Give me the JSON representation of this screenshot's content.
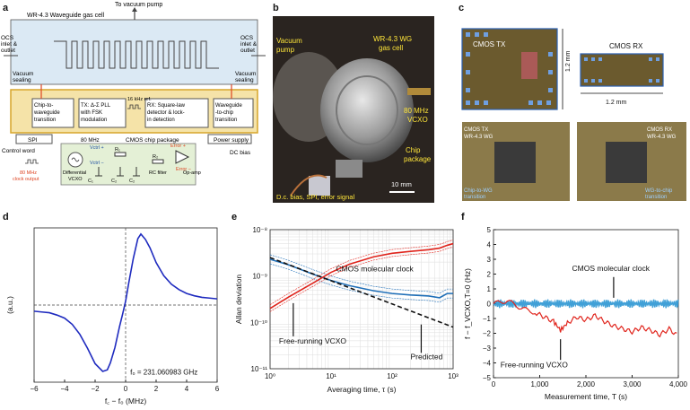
{
  "panels": {
    "a": {
      "label": "a",
      "title": "WR-4.3 Waveguide gas cell",
      "vacuum_pump": "To vacuum pump",
      "ocs_left": [
        "OCS",
        "inlet &",
        "outlet"
      ],
      "ocs_right": [
        "OCS",
        "inlet &",
        "outlet"
      ],
      "vac_seal_left": [
        "Vacuum",
        "sealing"
      ],
      "vac_seal_right": [
        "Vacuum",
        "sealing"
      ],
      "blocks": {
        "c2w": [
          "Chip-to-",
          "waveguide",
          "transition"
        ],
        "tx": [
          "TX: Δ-Σ PLL",
          "with FSK",
          "modulation"
        ],
        "ref": "16 kHz ref.",
        "rx": [
          "RX: Square-law",
          "detector & lock-",
          "in detection"
        ],
        "w2c": [
          "Waveguide",
          "-to-chip",
          "transition"
        ],
        "spi": "SPI",
        "mhz80": "80 MHz",
        "package": "CMOS chip package",
        "power": "Power supply"
      },
      "control_word": "Control word",
      "dc_bias": "DC bias",
      "vctrl1": "Vctrl +",
      "vctrl2": "Vctrl −",
      "error_p": "Error +",
      "error_m": "Error −",
      "r1": "R₁",
      "r2": "R₂",
      "c1": "C₁",
      "c2": "C₂",
      "c3": "C₂",
      "rc_filter": "RC filter",
      "op_amp": "Op-amp",
      "vcxo": [
        "Differential",
        "VCXO"
      ],
      "clock_out": [
        "80 MHz",
        "clock output"
      ]
    },
    "b": {
      "label": "b",
      "vacuum_pump": [
        "Vacuum",
        "pump"
      ],
      "gas_cell": [
        "WR-4.3 WG",
        "gas cell"
      ],
      "vcxo": [
        "80 MHz",
        "VCXO"
      ],
      "chip_pkg": [
        "Chip",
        "package"
      ],
      "dc_bias": "D.c. bias, SPI, error signal",
      "scale": "10 mm"
    },
    "c": {
      "label": "c",
      "cmos_tx": "CMOS TX",
      "cmos_rx": "CMOS RX",
      "dim_v": "1.2 mm",
      "dim_h": "1.2 mm",
      "tx_wg": [
        "CMOS TX",
        "WR-4.3 WG"
      ],
      "rx_wg": [
        "CMOS RX",
        "WR-4.3 WG"
      ],
      "c2w": [
        "Chip-to-WG",
        "transition"
      ],
      "w2c": [
        "WG-to-chip",
        "transition"
      ]
    },
    "d": {
      "label": "d"
    },
    "e": {
      "label": "e"
    },
    "f": {
      "label": "f"
    }
  },
  "chart_data": [
    {
      "type": "line",
      "panel": "d",
      "xlabel": "f꜀ − f₀ (MHz)",
      "ylabel": "(a.u.)",
      "xlim": [
        -6,
        6
      ],
      "x_ticks": [
        "−6",
        "−4",
        "−2",
        "0",
        "2",
        "4",
        "6"
      ],
      "annotation": "f₀ = 231.060983 GHz",
      "series": [
        {
          "color": "#1f2bbf",
          "x": [
            -6,
            -5.5,
            -5,
            -4.5,
            -4,
            -3.5,
            -3,
            -2.5,
            -2,
            -1.5,
            -1.2,
            -1,
            -0.7,
            -0.4,
            -0.2,
            0,
            0.2,
            0.5,
            0.8,
            1,
            1.3,
            1.6,
            2,
            2.5,
            3,
            3.5,
            4,
            4.5,
            5,
            5.5,
            6
          ],
          "y": [
            -0.08,
            -0.09,
            -0.1,
            -0.13,
            -0.17,
            -0.25,
            -0.38,
            -0.56,
            -0.76,
            -0.86,
            -0.84,
            -0.75,
            -0.55,
            -0.28,
            -0.12,
            0.05,
            0.28,
            0.6,
            0.86,
            0.92,
            0.85,
            0.74,
            0.55,
            0.38,
            0.27,
            0.2,
            0.15,
            0.12,
            0.1,
            0.09,
            0.08
          ]
        }
      ]
    },
    {
      "type": "line",
      "panel": "e",
      "xlabel": "Averaging time, τ (s)",
      "ylabel": "Allan deviation",
      "xscale": "log",
      "yscale": "log",
      "xlim": [
        1,
        1000
      ],
      "ylim": [
        1e-11,
        1e-08
      ],
      "x_ticks": [
        "10⁰",
        "10¹",
        "10²",
        "10³"
      ],
      "y_ticks": [
        "10⁻¹¹",
        "10⁻¹⁰",
        "10⁻⁹",
        "10⁻⁸"
      ],
      "annotations": [
        "CMOS molecular clock",
        "Free-running VCXO",
        "Predicted"
      ],
      "series": [
        {
          "name": "CMOS molecular clock",
          "color": "#1f6fb8",
          "x": [
            1,
            2,
            5,
            10,
            20,
            50,
            100,
            200,
            400,
            600,
            800,
            1000
          ],
          "y": [
            2.3e-09,
            1.75e-09,
            1.1e-09,
            8e-10,
            6.2e-10,
            4.8e-10,
            4.2e-10,
            3.9e-10,
            3.7e-10,
            3.4e-10,
            4.2e-10,
            4.2e-10
          ]
        },
        {
          "name": "Free-running VCXO",
          "color": "#e0241c",
          "x": [
            1,
            2,
            5,
            10,
            20,
            50,
            100,
            200,
            400,
            600,
            800,
            1000
          ],
          "y": [
            2e-10,
            3.5e-10,
            7e-10,
            1.2e-09,
            1.8e-09,
            2.6e-09,
            3.1e-09,
            3.4e-09,
            3.7e-09,
            4e-09,
            4.6e-09,
            5e-09
          ]
        },
        {
          "name": "Predicted",
          "color": "#111111",
          "x": [
            1,
            1000
          ],
          "y": [
            2.5e-09,
            7.9e-11
          ]
        }
      ]
    },
    {
      "type": "line",
      "panel": "f",
      "xlabel": "Measurement time, T (s)",
      "ylabel": "f − f_VCXO,T=0 (Hz)",
      "xlim": [
        0,
        4000
      ],
      "ylim": [
        -5,
        5
      ],
      "x_ticks": [
        "0",
        "1,000",
        "2,000",
        "3,000",
        "4,000"
      ],
      "y_ticks": [
        "−5",
        "−4",
        "−3",
        "−2",
        "−1",
        "0",
        "1",
        "2",
        "3",
        "4",
        "5"
      ],
      "annotations": [
        "CMOS molecular clock",
        "Free-running VCXO"
      ],
      "series": [
        {
          "name": "CMOS molecular clock",
          "color": "#1f8fd0",
          "x": [
            0,
            500,
            1000,
            1500,
            2000,
            2500,
            3000,
            3500,
            4000
          ],
          "y": [
            0,
            0.05,
            0,
            -0.05,
            0.1,
            0.05,
            0.1,
            0.05,
            0
          ]
        },
        {
          "name": "Free-running VCXO",
          "color": "#e0241c",
          "x": [
            0,
            300,
            600,
            900,
            1100,
            1300,
            1450,
            1600,
            1800,
            2000,
            2200,
            2400,
            2600,
            2800,
            3000,
            3200,
            3400,
            3600,
            3800,
            4000
          ],
          "y": [
            0,
            0.2,
            -0.3,
            -0.6,
            -0.9,
            -1.2,
            -1.8,
            -1.3,
            -0.9,
            -1.1,
            -0.8,
            -1.2,
            -1.5,
            -1.7,
            -1.9,
            -1.6,
            -1.8,
            -2.1,
            -1.7,
            -2.2
          ]
        }
      ]
    }
  ]
}
